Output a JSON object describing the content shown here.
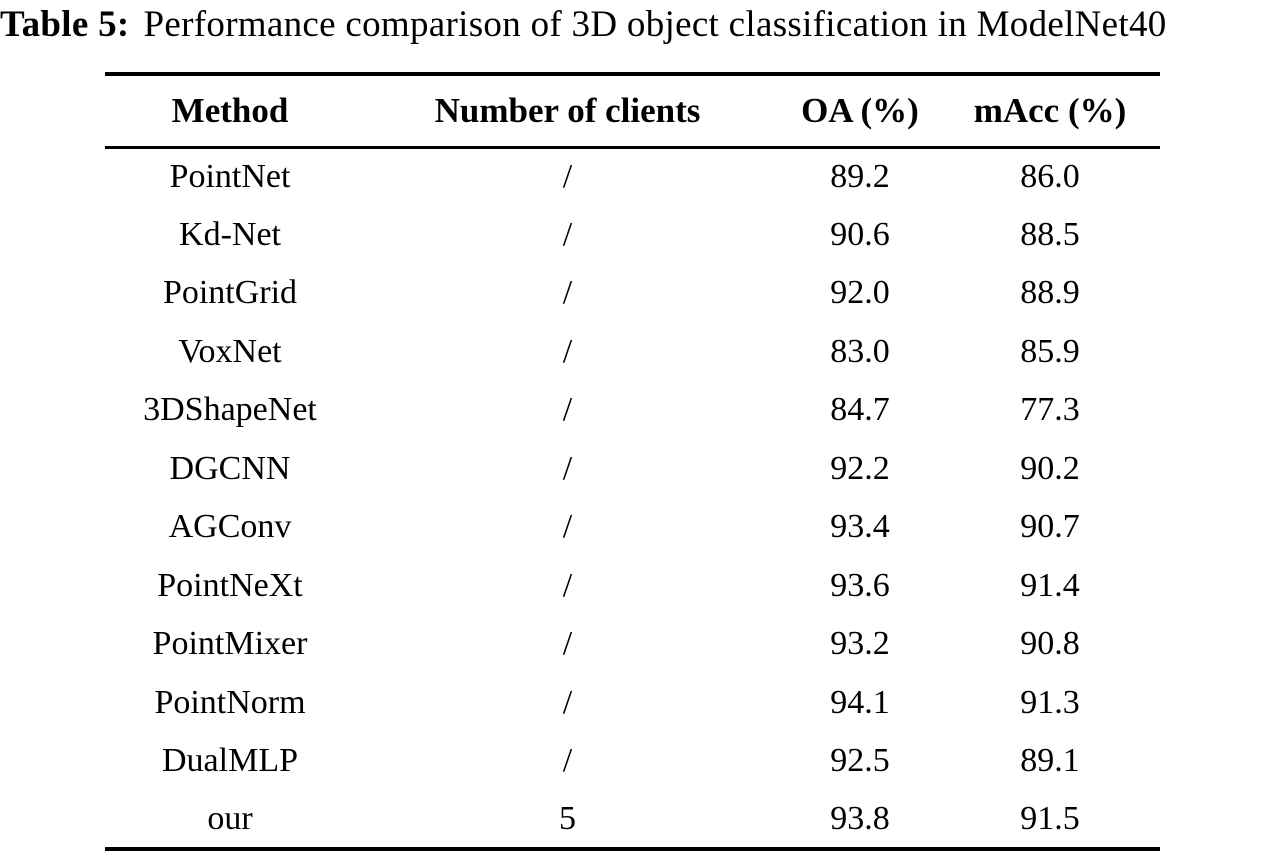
{
  "caption": {
    "label": "Table 5:",
    "text": "Performance comparison of 3D object classification in ModelNet40"
  },
  "table": {
    "columns": [
      "Method",
      "Number of clients",
      "OA (%)",
      "mAcc (%)"
    ],
    "rows": [
      {
        "method": "PointNet",
        "clients": "/",
        "oa": "89.2",
        "macc": "86.0"
      },
      {
        "method": "Kd-Net",
        "clients": "/",
        "oa": "90.6",
        "macc": "88.5"
      },
      {
        "method": "PointGrid",
        "clients": "/",
        "oa": "92.0",
        "macc": "88.9"
      },
      {
        "method": "VoxNet",
        "clients": "/",
        "oa": "83.0",
        "macc": "85.9"
      },
      {
        "method": "3DShapeNet",
        "clients": "/",
        "oa": "84.7",
        "macc": "77.3"
      },
      {
        "method": "DGCNN",
        "clients": "/",
        "oa": "92.2",
        "macc": "90.2"
      },
      {
        "method": "AGConv",
        "clients": "/",
        "oa": "93.4",
        "macc": "90.7"
      },
      {
        "method": "PointNeXt",
        "clients": "/",
        "oa": "93.6",
        "macc": "91.4"
      },
      {
        "method": "PointMixer",
        "clients": "/",
        "oa": "93.2",
        "macc": "90.8"
      },
      {
        "method": "PointNorm",
        "clients": "/",
        "oa": "94.1",
        "macc": "91.3"
      },
      {
        "method": "DualMLP",
        "clients": "/",
        "oa": "92.5",
        "macc": "89.1"
      },
      {
        "method": "our",
        "clients": "5",
        "oa": "93.8",
        "macc": "91.5"
      }
    ]
  },
  "colors": {
    "text": "#000000",
    "background": "#ffffff",
    "rule": "#000000"
  }
}
